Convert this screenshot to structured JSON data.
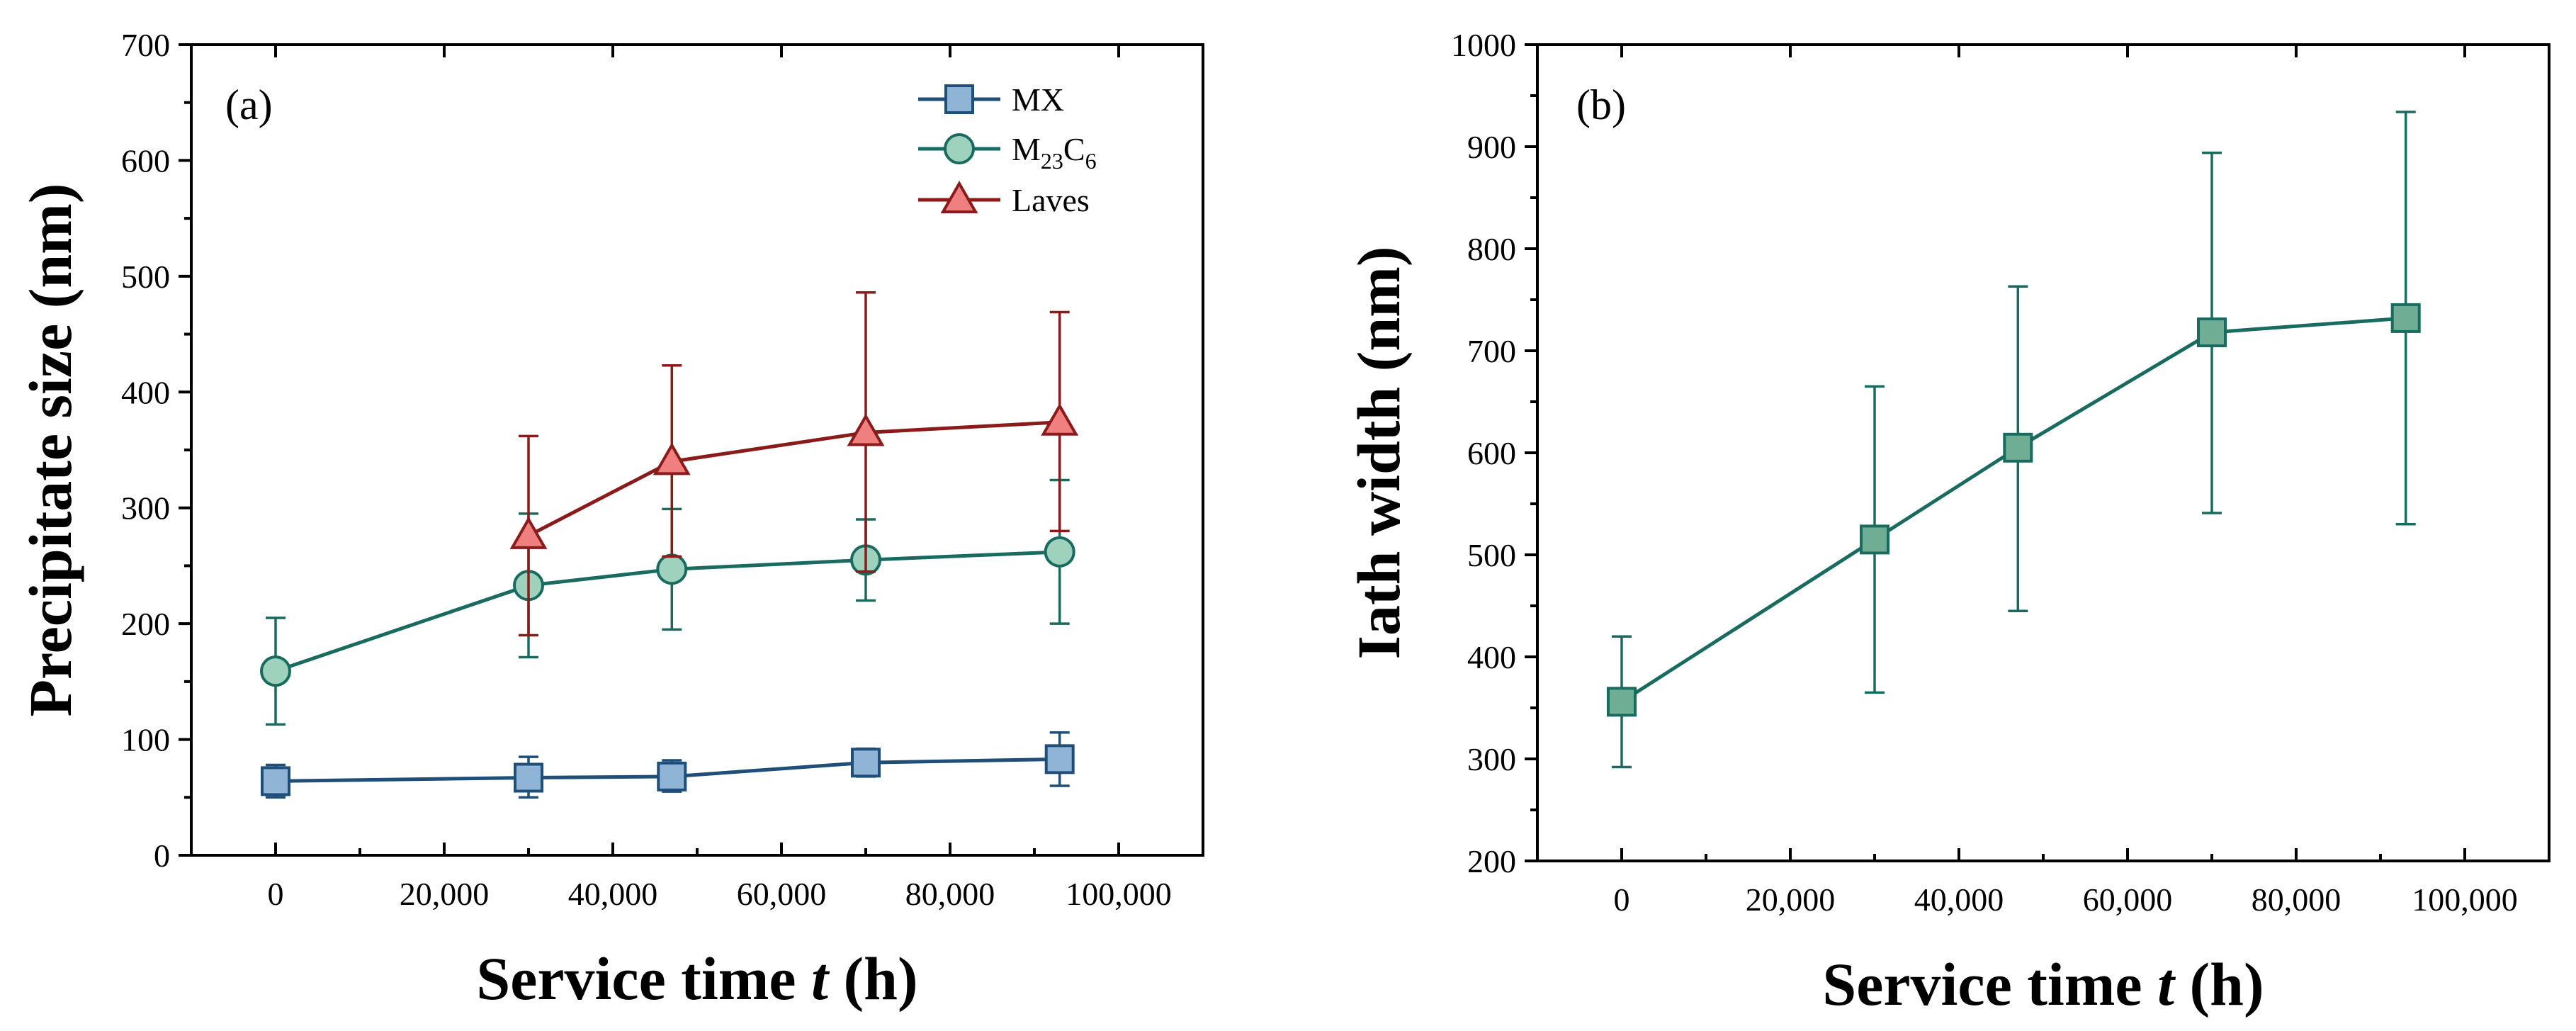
{
  "chart_data": [
    {
      "type": "line",
      "panel_label": "(a)",
      "xlabel": "Service time t (h)",
      "ylabel": "Precipitate size (nm)",
      "xlim": [
        -10000,
        110000
      ],
      "ylim": [
        0,
        700
      ],
      "x_ticks": [
        0,
        20000,
        40000,
        60000,
        80000,
        100000
      ],
      "y_ticks": [
        0,
        100,
        200,
        300,
        400,
        500,
        600,
        700
      ],
      "x_tick_labels": [
        "0",
        "20,000",
        "40,000",
        "60,000",
        "80,000",
        "100,000"
      ],
      "y_tick_labels": [
        "0",
        "100",
        "200",
        "300",
        "400",
        "500",
        "600",
        "700"
      ],
      "legend_position": "top-right",
      "grid": false,
      "series": [
        {
          "name": "MX",
          "legend_main": "MX",
          "legend_sub1": "",
          "legend_mid": "",
          "legend_sub2": "",
          "marker": "square",
          "line_color": "#1f4e79",
          "fill_color": "#8fb4d6",
          "x": [
            0,
            30000,
            47000,
            70000,
            93000
          ],
          "values": [
            64,
            67,
            68,
            80,
            83
          ],
          "err_low": [
            50,
            50,
            55,
            68,
            60
          ],
          "err_high": [
            78,
            85,
            82,
            92,
            106
          ]
        },
        {
          "name": "M23C6",
          "legend_main": "M",
          "legend_sub1": "23",
          "legend_mid": "C",
          "legend_sub2": "6",
          "marker": "circle",
          "line_color": "#1a6b5f",
          "fill_color": "#9fd2bd",
          "x": [
            0,
            30000,
            47000,
            70000,
            93000
          ],
          "values": [
            159,
            233,
            247,
            255,
            262
          ],
          "err_low": [
            113,
            171,
            195,
            220,
            200
          ],
          "err_high": [
            205,
            295,
            299,
            290,
            324
          ]
        },
        {
          "name": "Laves",
          "legend_main": "Laves",
          "legend_sub1": "",
          "legend_mid": "",
          "legend_sub2": "",
          "marker": "triangle",
          "line_color": "#8b1a1a",
          "fill_color": "#f08080",
          "x": [
            30000,
            47000,
            70000,
            93000
          ],
          "values": [
            276,
            340,
            365,
            374
          ],
          "err_low": [
            190,
            258,
            245,
            280
          ],
          "err_high": [
            362,
            423,
            486,
            469
          ]
        }
      ]
    },
    {
      "type": "line",
      "panel_label": "(b)",
      "xlabel": "Service time t (h)",
      "ylabel": "Iath width (nm)",
      "xlim": [
        -10000,
        110000
      ],
      "ylim": [
        200,
        1000
      ],
      "x_ticks": [
        0,
        20000,
        40000,
        60000,
        80000,
        100000
      ],
      "y_ticks": [
        200,
        300,
        400,
        500,
        600,
        700,
        800,
        900,
        1000
      ],
      "x_tick_labels": [
        "0",
        "20,000",
        "40,000",
        "60,000",
        "80,000",
        "100,000"
      ],
      "y_tick_labels": [
        "200",
        "300",
        "400",
        "500",
        "600",
        "700",
        "800",
        "900",
        "1000"
      ],
      "grid": false,
      "series": [
        {
          "name": "Iath width",
          "marker": "square",
          "line_color": "#1a6b5f",
          "fill_color": "#6fae94",
          "x": [
            0,
            30000,
            47000,
            70000,
            93000
          ],
          "values": [
            356,
            515,
            605,
            718,
            732
          ],
          "err_low": [
            292,
            365,
            445,
            541,
            530
          ],
          "err_high": [
            420,
            665,
            763,
            894,
            934
          ]
        }
      ]
    }
  ]
}
